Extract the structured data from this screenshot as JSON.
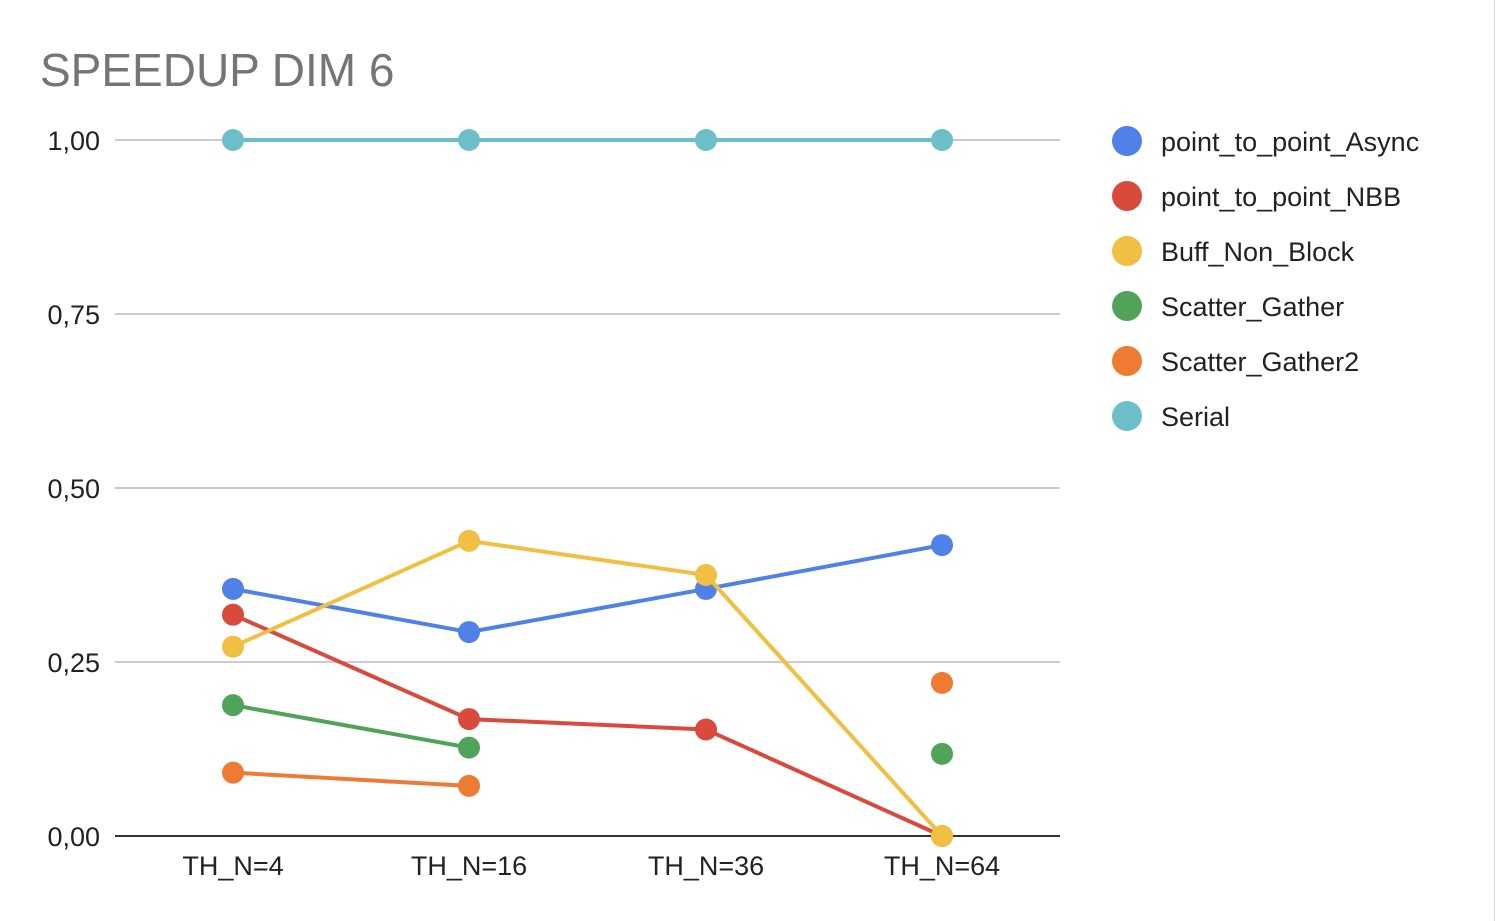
{
  "chart_data": {
    "type": "line",
    "title": "SPEEDUP DIM 6",
    "xlabel": "",
    "ylabel": "",
    "categories": [
      "TH_N=4",
      "TH_N=16",
      "TH_N=36",
      "TH_N=64"
    ],
    "ylim": [
      0,
      1
    ],
    "yticks": [
      "0,00",
      "0,25",
      "0,50",
      "0,75",
      "1,00"
    ],
    "ytick_values": [
      0,
      0.25,
      0.5,
      0.75,
      1.0
    ],
    "grid": true,
    "legend_position": "right",
    "series": [
      {
        "name": "point_to_point_Async",
        "color": "#4f81e8",
        "values": [
          0.355,
          0.293,
          0.355,
          0.418
        ]
      },
      {
        "name": "point_to_point_NBB",
        "color": "#d94a3d",
        "values": [
          0.318,
          0.168,
          0.153,
          0.0
        ]
      },
      {
        "name": "Buff_Non_Block",
        "color": "#f1bf42",
        "values": [
          0.272,
          0.424,
          0.375,
          0.0
        ]
      },
      {
        "name": "Scatter_Gather",
        "color": "#52a35a",
        "values": [
          0.188,
          0.127,
          null,
          0.118
        ]
      },
      {
        "name": "Scatter_Gather2",
        "color": "#ef7a32",
        "values": [
          0.091,
          0.072,
          null,
          0.22
        ]
      },
      {
        "name": "Serial",
        "color": "#6cbfc8",
        "values": [
          1.0,
          1.0,
          1.0,
          1.0
        ]
      }
    ]
  }
}
